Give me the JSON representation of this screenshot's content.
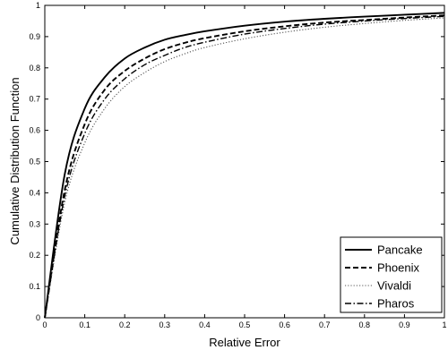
{
  "chart_data": {
    "type": "line",
    "title": "",
    "xlabel": "Relative Error",
    "ylabel": "Cumulative Distribution Function",
    "xlim": [
      0,
      1
    ],
    "ylim": [
      0,
      1
    ],
    "xticks": [
      "0",
      "0.1",
      "0.2",
      "0.3",
      "0.4",
      "0.5",
      "0.6",
      "0.7",
      "0.8",
      "0.9",
      "1"
    ],
    "yticks": [
      "0",
      "0.1",
      "0.2",
      "0.3",
      "0.4",
      "0.5",
      "0.6",
      "0.7",
      "0.8",
      "0.9",
      "1"
    ],
    "grid": false,
    "legend_position": "bottom-right",
    "x": [
      0,
      0.05,
      0.1,
      0.15,
      0.2,
      0.25,
      0.3,
      0.35,
      0.4,
      0.5,
      0.6,
      0.7,
      0.8,
      0.9,
      1.0
    ],
    "series": [
      {
        "name": "Pancake",
        "style": "solid",
        "color": "#000000",
        "values": [
          0,
          0.46,
          0.67,
          0.77,
          0.83,
          0.865,
          0.89,
          0.905,
          0.917,
          0.935,
          0.948,
          0.957,
          0.964,
          0.97,
          0.976
        ]
      },
      {
        "name": "Phoenix",
        "style": "dashed",
        "color": "#000000",
        "values": [
          0,
          0.41,
          0.62,
          0.73,
          0.79,
          0.83,
          0.86,
          0.88,
          0.895,
          0.917,
          0.933,
          0.945,
          0.953,
          0.961,
          0.968
        ]
      },
      {
        "name": "Vivaldi",
        "style": "dotted",
        "color": "#555555",
        "values": [
          0,
          0.37,
          0.56,
          0.67,
          0.74,
          0.785,
          0.82,
          0.845,
          0.865,
          0.893,
          0.914,
          0.93,
          0.942,
          0.952,
          0.96
        ]
      },
      {
        "name": "Pharos",
        "style": "dashdot",
        "color": "#000000",
        "values": [
          0,
          0.39,
          0.59,
          0.7,
          0.765,
          0.81,
          0.84,
          0.865,
          0.882,
          0.908,
          0.926,
          0.94,
          0.95,
          0.958,
          0.965
        ]
      }
    ]
  }
}
